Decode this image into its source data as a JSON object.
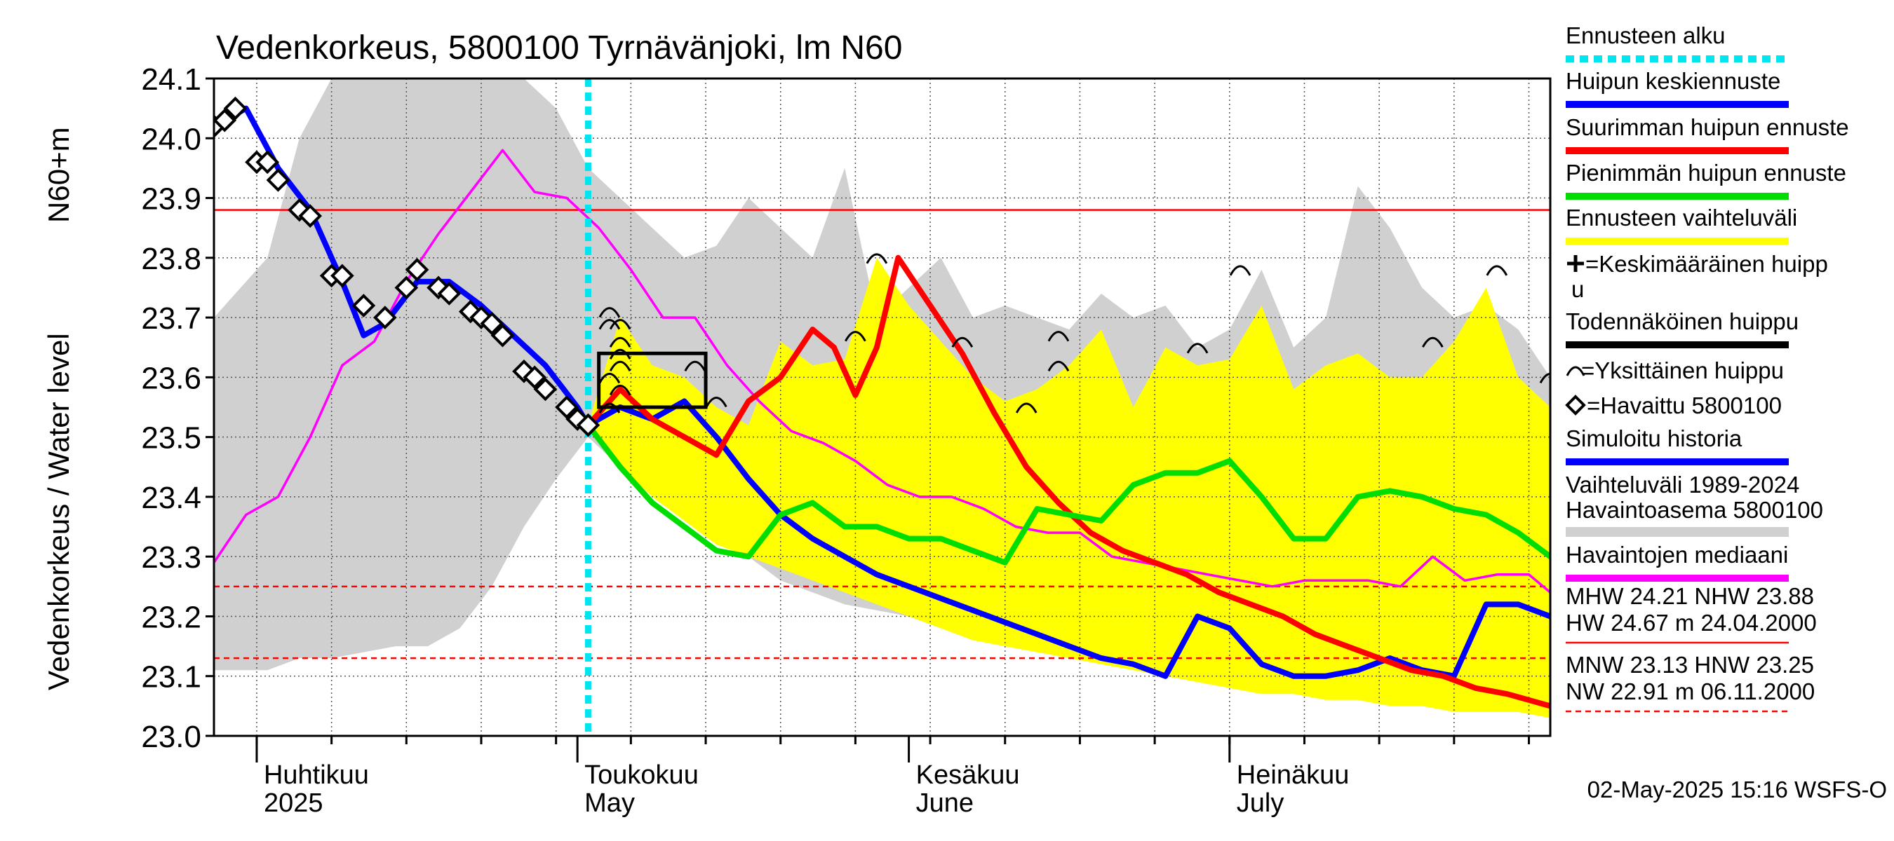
{
  "chart_data": {
    "type": "line",
    "title": "Vedenkorkeus, 5800100 Tyrnävänjoki, lm N60",
    "ylabel": "Vedenkorkeus / Water level",
    "ylabel_unit": "N60+m",
    "ylim": [
      23.0,
      24.1
    ],
    "yticks": [
      "23.0",
      "23.1",
      "23.2",
      "23.3",
      "23.4",
      "23.5",
      "23.6",
      "23.7",
      "23.8",
      "23.9",
      "24.0",
      "24.1"
    ],
    "xlim": [
      "2025-03-28",
      "2025-07-31"
    ],
    "month_labels": [
      {
        "fi": "Huhtikuu",
        "en": "2025",
        "date": "2025-04-01"
      },
      {
        "fi": "Toukokuu",
        "en": "May",
        "date": "2025-05-01"
      },
      {
        "fi": "Kesäkuu",
        "en": "June",
        "date": "2025-06-01"
      },
      {
        "fi": "Heinäkuu",
        "en": "July",
        "date": "2025-07-01"
      }
    ],
    "forecast_start": "2025-05-02",
    "reference_lines": [
      {
        "name": "NHW",
        "value": 23.88,
        "style": "solid",
        "color": "#ff0000"
      },
      {
        "name": "HNW",
        "value": 23.25,
        "style": "dashed",
        "color": "#ff0000"
      },
      {
        "name": "MNW",
        "value": 23.13,
        "style": "dashed",
        "color": "#ff0000"
      }
    ],
    "series": [
      {
        "name": "Vaihteluväli 1989-2024 Havaintoasema 5800100",
        "type": "band",
        "color": "#d0d0d0",
        "x": [
          "2025-03-28",
          "2025-04-02",
          "2025-04-05",
          "2025-04-08",
          "2025-04-11",
          "2025-04-14",
          "2025-04-17",
          "2025-04-20",
          "2025-04-23",
          "2025-04-26",
          "2025-04-29",
          "2025-05-02",
          "2025-05-05",
          "2025-05-08",
          "2025-05-11",
          "2025-05-14",
          "2025-05-17",
          "2025-05-20",
          "2025-05-23",
          "2025-05-26",
          "2025-05-29",
          "2025-06-01",
          "2025-06-04",
          "2025-06-07",
          "2025-06-10",
          "2025-06-13",
          "2025-06-16",
          "2025-06-19",
          "2025-06-22",
          "2025-06-25",
          "2025-06-28",
          "2025-07-01",
          "2025-07-04",
          "2025-07-07",
          "2025-07-10",
          "2025-07-13",
          "2025-07-16",
          "2025-07-19",
          "2025-07-22",
          "2025-07-25",
          "2025-07-28",
          "2025-07-31"
        ],
        "low": [
          23.11,
          23.11,
          23.13,
          23.13,
          23.14,
          23.15,
          23.15,
          23.18,
          23.25,
          23.35,
          23.43,
          23.5,
          23.45,
          23.42,
          23.38,
          23.34,
          23.3,
          23.26,
          23.24,
          23.22,
          23.21,
          23.2,
          23.18,
          23.17,
          23.16,
          23.15,
          23.14,
          23.13,
          23.12,
          23.11,
          23.11,
          23.1,
          23.1,
          23.09,
          23.09,
          23.08,
          23.08,
          23.07,
          23.07,
          23.06,
          23.05,
          23.05
        ],
        "high": [
          23.7,
          23.8,
          24.0,
          24.1,
          24.1,
          24.1,
          24.1,
          24.1,
          24.1,
          24.1,
          24.05,
          23.95,
          23.9,
          23.85,
          23.8,
          23.82,
          23.9,
          23.85,
          23.8,
          23.95,
          23.7,
          23.75,
          23.8,
          23.7,
          23.72,
          23.7,
          23.68,
          23.74,
          23.7,
          23.72,
          23.65,
          23.68,
          23.78,
          23.65,
          23.7,
          23.92,
          23.85,
          23.75,
          23.7,
          23.72,
          23.68,
          23.6
        ]
      },
      {
        "name": "Ennusteen vaihteluväli",
        "type": "band",
        "color": "#ffff00",
        "x": [
          "2025-05-02",
          "2025-05-05",
          "2025-05-08",
          "2025-05-11",
          "2025-05-14",
          "2025-05-17",
          "2025-05-20",
          "2025-05-23",
          "2025-05-26",
          "2025-05-29",
          "2025-06-01",
          "2025-06-04",
          "2025-06-07",
          "2025-06-10",
          "2025-06-13",
          "2025-06-16",
          "2025-06-19",
          "2025-06-22",
          "2025-06-25",
          "2025-06-28",
          "2025-07-01",
          "2025-07-04",
          "2025-07-07",
          "2025-07-10",
          "2025-07-13",
          "2025-07-16",
          "2025-07-19",
          "2025-07-22",
          "2025-07-25",
          "2025-07-28",
          "2025-07-31"
        ],
        "low": [
          23.52,
          23.45,
          23.4,
          23.36,
          23.32,
          23.3,
          23.28,
          23.26,
          23.24,
          23.22,
          23.2,
          23.18,
          23.16,
          23.15,
          23.14,
          23.13,
          23.12,
          23.11,
          23.1,
          23.09,
          23.08,
          23.07,
          23.07,
          23.06,
          23.06,
          23.05,
          23.05,
          23.04,
          23.04,
          23.04,
          23.03
        ],
        "high": [
          23.52,
          23.7,
          23.62,
          23.6,
          23.55,
          23.52,
          23.66,
          23.62,
          23.63,
          23.8,
          23.72,
          23.66,
          23.6,
          23.56,
          23.58,
          23.62,
          23.68,
          23.55,
          23.65,
          23.62,
          23.63,
          23.72,
          23.58,
          23.62,
          23.64,
          23.6,
          23.6,
          23.66,
          23.75,
          23.6,
          23.55
        ]
      },
      {
        "name": "Havaintojen mediaani",
        "color": "#ff00ff",
        "x": [
          "2025-03-28",
          "2025-03-31",
          "2025-04-03",
          "2025-04-06",
          "2025-04-09",
          "2025-04-12",
          "2025-04-15",
          "2025-04-18",
          "2025-04-21",
          "2025-04-24",
          "2025-04-27",
          "2025-04-30",
          "2025-05-03",
          "2025-05-06",
          "2025-05-09",
          "2025-05-12",
          "2025-05-15",
          "2025-05-18",
          "2025-05-21",
          "2025-05-24",
          "2025-05-27",
          "2025-05-30",
          "2025-06-02",
          "2025-06-05",
          "2025-06-08",
          "2025-06-11",
          "2025-06-14",
          "2025-06-17",
          "2025-06-20",
          "2025-06-23",
          "2025-06-26",
          "2025-06-29",
          "2025-07-02",
          "2025-07-05",
          "2025-07-08",
          "2025-07-11",
          "2025-07-14",
          "2025-07-17",
          "2025-07-20",
          "2025-07-23",
          "2025-07-26",
          "2025-07-29",
          "2025-07-31"
        ],
        "y": [
          23.29,
          23.37,
          23.4,
          23.5,
          23.62,
          23.66,
          23.76,
          23.84,
          23.91,
          23.98,
          23.91,
          23.9,
          23.85,
          23.78,
          23.7,
          23.7,
          23.62,
          23.56,
          23.51,
          23.49,
          23.46,
          23.42,
          23.4,
          23.4,
          23.38,
          23.35,
          23.34,
          23.34,
          23.3,
          23.29,
          23.28,
          23.27,
          23.26,
          23.25,
          23.26,
          23.26,
          23.26,
          23.25,
          23.3,
          23.26,
          23.27,
          23.27,
          23.24
        ]
      },
      {
        "name": "Simuloitu historia",
        "color": "#0000ff",
        "x": [
          "2025-03-28",
          "2025-03-31",
          "2025-04-03",
          "2025-04-06",
          "2025-04-09",
          "2025-04-11",
          "2025-04-13",
          "2025-04-16",
          "2025-04-19",
          "2025-04-22",
          "2025-04-25",
          "2025-04-28",
          "2025-05-01",
          "2025-05-02"
        ],
        "y": [
          24.02,
          24.05,
          23.95,
          23.88,
          23.76,
          23.67,
          23.69,
          23.76,
          23.76,
          23.72,
          23.67,
          23.62,
          23.55,
          23.52
        ]
      },
      {
        "name": "Huipun keskiennuste",
        "color": "#0000ff",
        "x": [
          "2025-05-02",
          "2025-05-05",
          "2025-05-08",
          "2025-05-11",
          "2025-05-14",
          "2025-05-17",
          "2025-05-20",
          "2025-05-23",
          "2025-05-26",
          "2025-05-29",
          "2025-06-01",
          "2025-06-04",
          "2025-06-07",
          "2025-06-10",
          "2025-06-13",
          "2025-06-16",
          "2025-06-19",
          "2025-06-22",
          "2025-06-25",
          "2025-06-28",
          "2025-07-01",
          "2025-07-04",
          "2025-07-07",
          "2025-07-10",
          "2025-07-13",
          "2025-07-16",
          "2025-07-19",
          "2025-07-22",
          "2025-07-25",
          "2025-07-28",
          "2025-07-31"
        ],
        "y": [
          23.52,
          23.55,
          23.53,
          23.56,
          23.5,
          23.43,
          23.37,
          23.33,
          23.3,
          23.27,
          23.25,
          23.23,
          23.21,
          23.19,
          23.17,
          23.15,
          23.13,
          23.12,
          23.1,
          23.2,
          23.18,
          23.12,
          23.1,
          23.1,
          23.11,
          23.13,
          23.11,
          23.1,
          23.22,
          23.22,
          23.2
        ]
      },
      {
        "name": "Suurimman huipun ennuste",
        "color": "#ff0000",
        "x": [
          "2025-05-02",
          "2025-05-05",
          "2025-05-08",
          "2025-05-11",
          "2025-05-14",
          "2025-05-17",
          "2025-05-20",
          "2025-05-23",
          "2025-05-25",
          "2025-05-27",
          "2025-05-29",
          "2025-05-31",
          "2025-06-03",
          "2025-06-06",
          "2025-06-09",
          "2025-06-12",
          "2025-06-15",
          "2025-06-18",
          "2025-06-21",
          "2025-06-24",
          "2025-06-27",
          "2025-06-30",
          "2025-07-03",
          "2025-07-06",
          "2025-07-09",
          "2025-07-12",
          "2025-07-15",
          "2025-07-18",
          "2025-07-21",
          "2025-07-24",
          "2025-07-27",
          "2025-07-31"
        ],
        "y": [
          23.52,
          23.58,
          23.53,
          23.5,
          23.47,
          23.56,
          23.6,
          23.68,
          23.65,
          23.57,
          23.65,
          23.8,
          23.72,
          23.64,
          23.54,
          23.45,
          23.39,
          23.34,
          23.31,
          23.29,
          23.27,
          23.24,
          23.22,
          23.2,
          23.17,
          23.15,
          23.13,
          23.11,
          23.1,
          23.08,
          23.07,
          23.05
        ]
      },
      {
        "name": "Pienimmän huipun ennuste",
        "color": "#00dd00",
        "x": [
          "2025-05-02",
          "2025-05-05",
          "2025-05-08",
          "2025-05-11",
          "2025-05-14",
          "2025-05-17",
          "2025-05-20",
          "2025-05-23",
          "2025-05-26",
          "2025-05-29",
          "2025-06-01",
          "2025-06-04",
          "2025-06-07",
          "2025-06-10",
          "2025-06-13",
          "2025-06-16",
          "2025-06-19",
          "2025-06-22",
          "2025-06-25",
          "2025-06-28",
          "2025-07-01",
          "2025-07-04",
          "2025-07-07",
          "2025-07-10",
          "2025-07-13",
          "2025-07-16",
          "2025-07-19",
          "2025-07-22",
          "2025-07-25",
          "2025-07-28",
          "2025-07-31"
        ],
        "y": [
          23.52,
          23.45,
          23.39,
          23.35,
          23.31,
          23.3,
          23.37,
          23.39,
          23.35,
          23.35,
          23.33,
          23.33,
          23.31,
          23.29,
          23.38,
          23.37,
          23.36,
          23.42,
          23.44,
          23.44,
          23.46,
          23.4,
          23.33,
          23.33,
          23.4,
          23.41,
          23.4,
          23.38,
          23.37,
          23.34,
          23.3
        ]
      }
    ],
    "observations": {
      "name": "Havaittu 5800100",
      "x": [
        "2025-03-28",
        "2025-03-29",
        "2025-03-30",
        "2025-04-01",
        "2025-04-02",
        "2025-04-03",
        "2025-04-05",
        "2025-04-06",
        "2025-04-08",
        "2025-04-09",
        "2025-04-11",
        "2025-04-13",
        "2025-04-15",
        "2025-04-16",
        "2025-04-18",
        "2025-04-19",
        "2025-04-21",
        "2025-04-22",
        "2025-04-23",
        "2025-04-24",
        "2025-04-26",
        "2025-04-27",
        "2025-04-28",
        "2025-04-30",
        "2025-05-01",
        "2025-05-02"
      ],
      "y": [
        24.02,
        24.03,
        24.05,
        23.96,
        23.96,
        23.93,
        23.88,
        23.87,
        23.77,
        23.77,
        23.72,
        23.7,
        23.75,
        23.78,
        23.75,
        23.74,
        23.71,
        23.7,
        23.69,
        23.67,
        23.61,
        23.6,
        23.58,
        23.55,
        23.53,
        23.52
      ]
    },
    "forecast_box": {
      "x_start": "2025-05-03",
      "x_end": "2025-05-13",
      "y_low": 23.55,
      "y_high": 23.64
    },
    "individual_peaks": {
      "x": [
        "2025-05-04",
        "2025-05-04",
        "2025-05-04",
        "2025-05-04",
        "2025-05-05",
        "2025-05-05",
        "2025-05-05",
        "2025-05-05",
        "2025-05-05",
        "2025-05-12",
        "2025-05-14",
        "2025-05-29",
        "2025-05-27",
        "2025-06-06",
        "2025-06-12",
        "2025-06-15",
        "2025-06-15",
        "2025-06-28",
        "2025-07-02",
        "2025-07-20",
        "2025-07-26",
        "2025-07-31"
      ],
      "y": [
        23.71,
        23.69,
        23.6,
        23.55,
        23.69,
        23.66,
        23.64,
        23.62,
        23.58,
        23.62,
        23.56,
        23.8,
        23.67,
        23.66,
        23.55,
        23.67,
        23.62,
        23.65,
        23.78,
        23.66,
        23.78,
        23.6
      ]
    },
    "legend": [
      {
        "label": "Ennusteen alku",
        "kind": "dotted-line",
        "color": "#00e5ee"
      },
      {
        "label": "Huipun keskiennuste",
        "kind": "line",
        "color": "#0000ff"
      },
      {
        "label": "Suurimman huipun ennuste",
        "kind": "line",
        "color": "#ff0000"
      },
      {
        "label": "Pienimmän huipun ennuste",
        "kind": "line",
        "color": "#00dd00"
      },
      {
        "label": "Ennusteen vaihteluväli",
        "kind": "line",
        "color": "#ffff00"
      },
      {
        "label": "=Keskimääräinen huipp",
        "label2": "u",
        "kind": "plus-marker",
        "color": "#000000"
      },
      {
        "label": "Todennäköinen huippu",
        "kind": "line",
        "color": "#000000"
      },
      {
        "label": "=Yksittäinen huippu",
        "kind": "arc-marker",
        "color": "#000000"
      },
      {
        "label": "=Havaittu 5800100",
        "kind": "diamond-marker",
        "color": "#000000"
      },
      {
        "label": "Simuloitu historia",
        "kind": "line",
        "color": "#0000ff"
      },
      {
        "label": "Vaihteluväli 1989-2024",
        "label2": " Havaintoasema 5800100",
        "kind": "line",
        "color": "#d0d0d0"
      },
      {
        "label": "Havaintojen mediaani",
        "kind": "line",
        "color": "#ff00ff"
      },
      {
        "label": "MHW  24.21 NHW  23.88",
        "label2": "HW  24.67 m 24.04.2000",
        "kind": "solid-ref",
        "color": "#ff0000"
      },
      {
        "label": "MNW  23.13 HNW  23.25",
        "label2": "NW  22.91 m 06.11.2000",
        "kind": "dashed-ref",
        "color": "#ff0000"
      }
    ],
    "footer": "02-May-2025 15:16 WSFS-O"
  }
}
